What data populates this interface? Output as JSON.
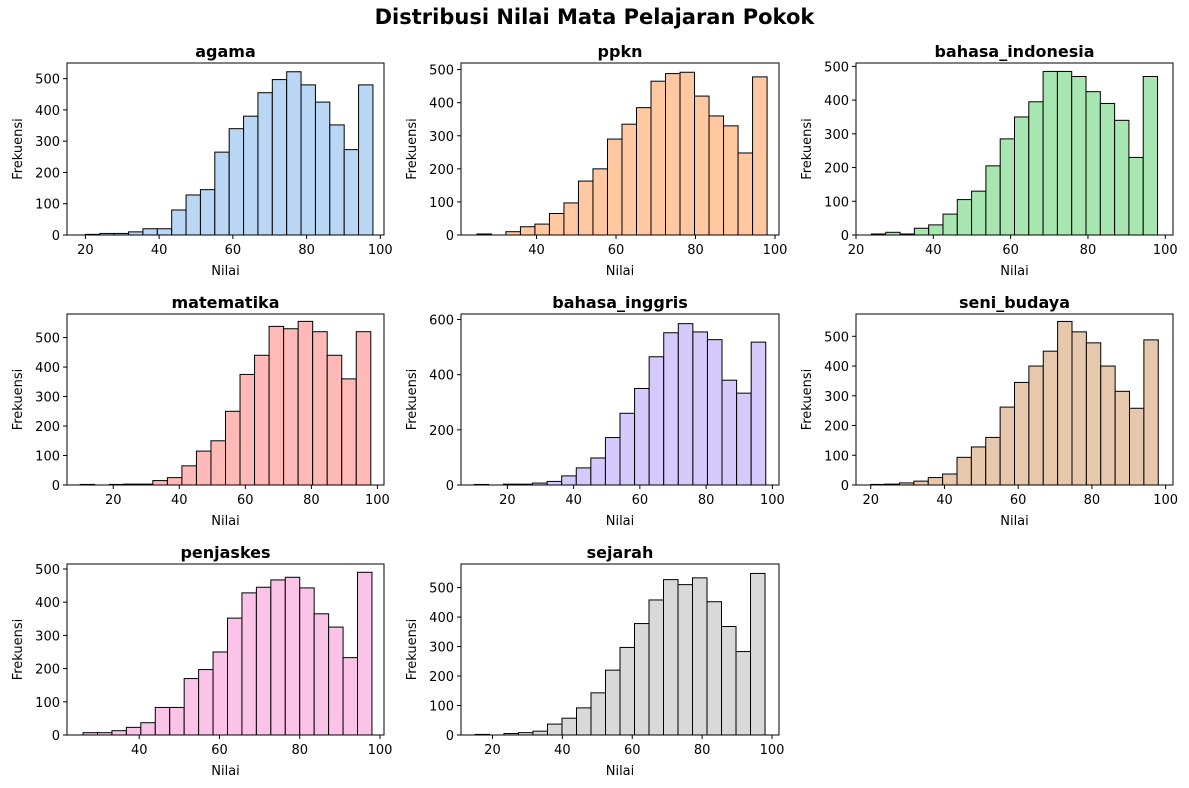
{
  "figure_title": "Distribusi Nilai Mata Pelajaran Pokok",
  "chart_data": [
    {
      "type": "bar",
      "title": "agama",
      "xlabel": "Nilai",
      "ylabel": "Frekuensi",
      "color": "#b9d6f5",
      "xlim": [
        15,
        101
      ],
      "ylim": [
        0,
        550
      ],
      "xticks": [
        20,
        40,
        60,
        80,
        100
      ],
      "yticks": [
        0,
        100,
        200,
        300,
        400,
        500
      ],
      "bins": [
        20,
        23.9,
        27.8,
        31.7,
        35.6,
        39.5,
        43.4,
        47.3,
        51.2,
        55.1,
        59,
        62.9,
        66.8,
        70.7,
        74.6,
        78.5,
        82.4,
        86.3,
        90.2,
        94.1,
        98
      ],
      "counts": [
        2,
        5,
        5,
        10,
        20,
        20,
        80,
        128,
        145,
        265,
        340,
        380,
        455,
        497,
        522,
        480,
        425,
        352,
        273,
        480
      ]
    },
    {
      "type": "bar",
      "title": "ppkn",
      "xlabel": "Nilai",
      "ylabel": "Frekuensi",
      "color": "#ffc8a0",
      "xlim": [
        21,
        101
      ],
      "ylim": [
        0,
        520
      ],
      "xticks": [
        40,
        60,
        80,
        100
      ],
      "yticks": [
        0,
        100,
        200,
        300,
        400,
        500
      ],
      "bins": [
        25,
        28.65,
        32.3,
        35.95,
        39.6,
        43.25,
        46.9,
        50.55,
        54.2,
        57.85,
        61.5,
        65.15,
        68.8,
        72.45,
        76.1,
        79.75,
        83.4,
        87.05,
        90.7,
        94.35,
        98
      ],
      "counts": [
        3,
        0,
        10,
        25,
        33,
        65,
        97,
        163,
        200,
        290,
        335,
        385,
        465,
        488,
        492,
        420,
        360,
        330,
        248,
        478
      ]
    },
    {
      "type": "bar",
      "title": "bahasa_indonesia",
      "xlabel": "Nilai",
      "ylabel": "Frekuensi",
      "color": "#a8e6b1",
      "xlim": [
        20,
        102
      ],
      "ylim": [
        0,
        510
      ],
      "xticks": [
        20,
        40,
        60,
        80,
        100
      ],
      "yticks": [
        0,
        100,
        200,
        300,
        400,
        500
      ],
      "bins": [
        24,
        27.7,
        31.4,
        35.1,
        38.8,
        42.5,
        46.2,
        49.9,
        53.6,
        57.3,
        61,
        64.7,
        68.4,
        72.1,
        75.8,
        79.5,
        83.2,
        86.9,
        90.6,
        94.3,
        98
      ],
      "counts": [
        3,
        8,
        3,
        20,
        30,
        62,
        105,
        130,
        205,
        285,
        350,
        395,
        485,
        485,
        470,
        425,
        390,
        340,
        230,
        470
      ]
    },
    {
      "type": "bar",
      "title": "matematika",
      "xlabel": "Nilai",
      "ylabel": "Frekuensi",
      "color": "#ffbab8",
      "xlim": [
        6,
        102
      ],
      "ylim": [
        0,
        580
      ],
      "xticks": [
        20,
        40,
        60,
        80,
        100
      ],
      "yticks": [
        0,
        100,
        200,
        300,
        400,
        500
      ],
      "bins": [
        10,
        14.4,
        18.8,
        23.2,
        27.6,
        32,
        36.4,
        40.8,
        45.2,
        49.6,
        54,
        58.4,
        62.8,
        67.2,
        71.6,
        76,
        80.4,
        84.8,
        89.2,
        93.6,
        98
      ],
      "counts": [
        2,
        0,
        2,
        3,
        3,
        15,
        25,
        65,
        115,
        150,
        250,
        375,
        440,
        538,
        530,
        555,
        520,
        440,
        360,
        520
      ]
    },
    {
      "type": "bar",
      "title": "bahasa_inggris",
      "xlabel": "Nilai",
      "ylabel": "Frekuensi",
      "color": "#d6cafc",
      "xlim": [
        6,
        102
      ],
      "ylim": [
        0,
        620
      ],
      "xticks": [
        20,
        40,
        60,
        80,
        100
      ],
      "yticks": [
        0,
        200,
        400,
        600
      ],
      "bins": [
        10,
        14.4,
        18.8,
        23.2,
        27.6,
        32,
        36.4,
        40.8,
        45.2,
        49.6,
        54,
        58.4,
        62.8,
        67.2,
        71.6,
        76,
        80.4,
        84.8,
        89.2,
        93.6,
        98
      ],
      "counts": [
        2,
        0,
        3,
        3,
        7,
        13,
        33,
        62,
        98,
        172,
        260,
        350,
        465,
        552,
        585,
        555,
        527,
        380,
        333,
        518
      ]
    },
    {
      "type": "bar",
      "title": "seni_budaya",
      "xlabel": "Nilai",
      "ylabel": "Frekuensi",
      "color": "#e8c8ad",
      "xlim": [
        16,
        102
      ],
      "ylim": [
        0,
        575
      ],
      "xticks": [
        20,
        40,
        60,
        80,
        100
      ],
      "yticks": [
        0,
        100,
        200,
        300,
        400,
        500
      ],
      "bins": [
        20,
        23.9,
        27.8,
        31.7,
        35.6,
        39.5,
        43.4,
        47.3,
        51.2,
        55.1,
        59,
        62.9,
        66.8,
        70.7,
        74.6,
        78.5,
        82.4,
        86.3,
        90.2,
        94.1,
        98
      ],
      "counts": [
        2,
        3,
        7,
        13,
        25,
        37,
        93,
        128,
        160,
        262,
        345,
        400,
        450,
        550,
        515,
        478,
        400,
        315,
        258,
        488
      ]
    },
    {
      "type": "bar",
      "title": "penjaskes",
      "xlabel": "Nilai",
      "ylabel": "Frekuensi",
      "color": "#fbc3e8",
      "xlim": [
        22,
        101
      ],
      "ylim": [
        0,
        515
      ],
      "xticks": [
        40,
        60,
        80,
        100
      ],
      "yticks": [
        0,
        100,
        200,
        300,
        400,
        500
      ],
      "bins": [
        26,
        29.6,
        33.2,
        36.8,
        40.4,
        44,
        47.6,
        51.2,
        54.8,
        58.4,
        62,
        65.6,
        69.2,
        72.8,
        76.4,
        80,
        83.6,
        87.2,
        90.8,
        94.4,
        98
      ],
      "counts": [
        7,
        7,
        13,
        23,
        37,
        83,
        83,
        170,
        197,
        250,
        352,
        428,
        445,
        467,
        475,
        443,
        365,
        325,
        233,
        490
      ]
    },
    {
      "type": "bar",
      "title": "sejarah",
      "xlabel": "Nilai",
      "ylabel": "Frekuensi",
      "color": "#d9d9d9",
      "xlim": [
        11,
        102
      ],
      "ylim": [
        0,
        580
      ],
      "xticks": [
        20,
        40,
        60,
        80,
        100
      ],
      "yticks": [
        0,
        100,
        200,
        300,
        400,
        500
      ],
      "bins": [
        15,
        19.15,
        23.3,
        27.45,
        31.6,
        35.75,
        39.9,
        44.05,
        48.2,
        52.35,
        56.5,
        60.65,
        64.8,
        68.95,
        73.1,
        77.25,
        81.4,
        85.55,
        89.7,
        93.85,
        98
      ],
      "counts": [
        2,
        0,
        5,
        8,
        13,
        37,
        57,
        92,
        143,
        220,
        297,
        378,
        458,
        527,
        510,
        533,
        452,
        368,
        283,
        548
      ]
    }
  ]
}
